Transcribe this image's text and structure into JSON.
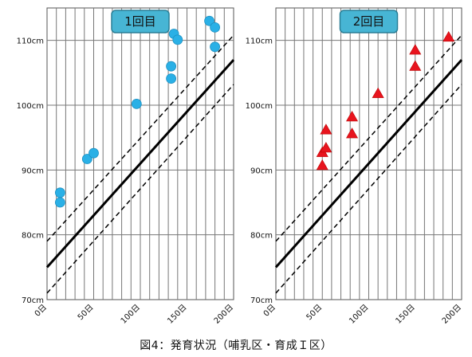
{
  "caption": "図4：発育状況（哺乳区・育成Ｉ区）",
  "chart_data": [
    {
      "type": "scatter",
      "panel_label": "1回目",
      "x_ticks": [
        "0日",
        "50日",
        "100日",
        "150日",
        "200日"
      ],
      "y_ticks": [
        "70cm",
        "80cm",
        "90cm",
        "100cm",
        "110cm"
      ],
      "xlim": [
        0,
        200
      ],
      "ylim": [
        70,
        115
      ],
      "grid": true,
      "marker": "circle",
      "marker_color": "#2ab0e6",
      "points": [
        {
          "x": 14,
          "y": 86.5
        },
        {
          "x": 14,
          "y": 85.0
        },
        {
          "x": 43,
          "y": 91.7
        },
        {
          "x": 50,
          "y": 92.6
        },
        {
          "x": 96,
          "y": 100.2
        },
        {
          "x": 133,
          "y": 106.0
        },
        {
          "x": 133,
          "y": 104.1
        },
        {
          "x": 136,
          "y": 111.0
        },
        {
          "x": 140,
          "y": 110.1
        },
        {
          "x": 174,
          "y": 113.0
        },
        {
          "x": 180,
          "y": 112.0
        },
        {
          "x": 180,
          "y": 109.0
        }
      ],
      "lines": [
        {
          "style": "solid",
          "y_at_0": 75.0,
          "y_at_200": 107.0
        },
        {
          "style": "dashed",
          "y_at_0": 79.0,
          "y_at_200": 110.8
        },
        {
          "style": "dashed",
          "y_at_0": 71.0,
          "y_at_200": 103.2
        }
      ]
    },
    {
      "type": "scatter",
      "panel_label": "2回目",
      "x_ticks": [
        "0日",
        "50日",
        "100日",
        "150日",
        "200日"
      ],
      "y_ticks": [
        "70cm",
        "80cm",
        "90cm",
        "100cm",
        "110cm"
      ],
      "xlim": [
        0,
        200
      ],
      "ylim": [
        70,
        115
      ],
      "grid": true,
      "marker": "triangle",
      "marker_color": "#e8141e",
      "points": [
        {
          "x": 50,
          "y": 90.7
        },
        {
          "x": 50,
          "y": 92.7
        },
        {
          "x": 54,
          "y": 96.2
        },
        {
          "x": 54,
          "y": 93.4
        },
        {
          "x": 82,
          "y": 98.2
        },
        {
          "x": 82,
          "y": 95.6
        },
        {
          "x": 110,
          "y": 101.8
        },
        {
          "x": 150,
          "y": 108.5
        },
        {
          "x": 150,
          "y": 106.0
        },
        {
          "x": 186,
          "y": 110.5
        }
      ],
      "lines": [
        {
          "style": "solid",
          "y_at_0": 75.0,
          "y_at_200": 107.0
        },
        {
          "style": "dashed",
          "y_at_0": 79.0,
          "y_at_200": 110.8
        },
        {
          "style": "dashed",
          "y_at_0": 71.0,
          "y_at_200": 103.2
        }
      ]
    }
  ]
}
